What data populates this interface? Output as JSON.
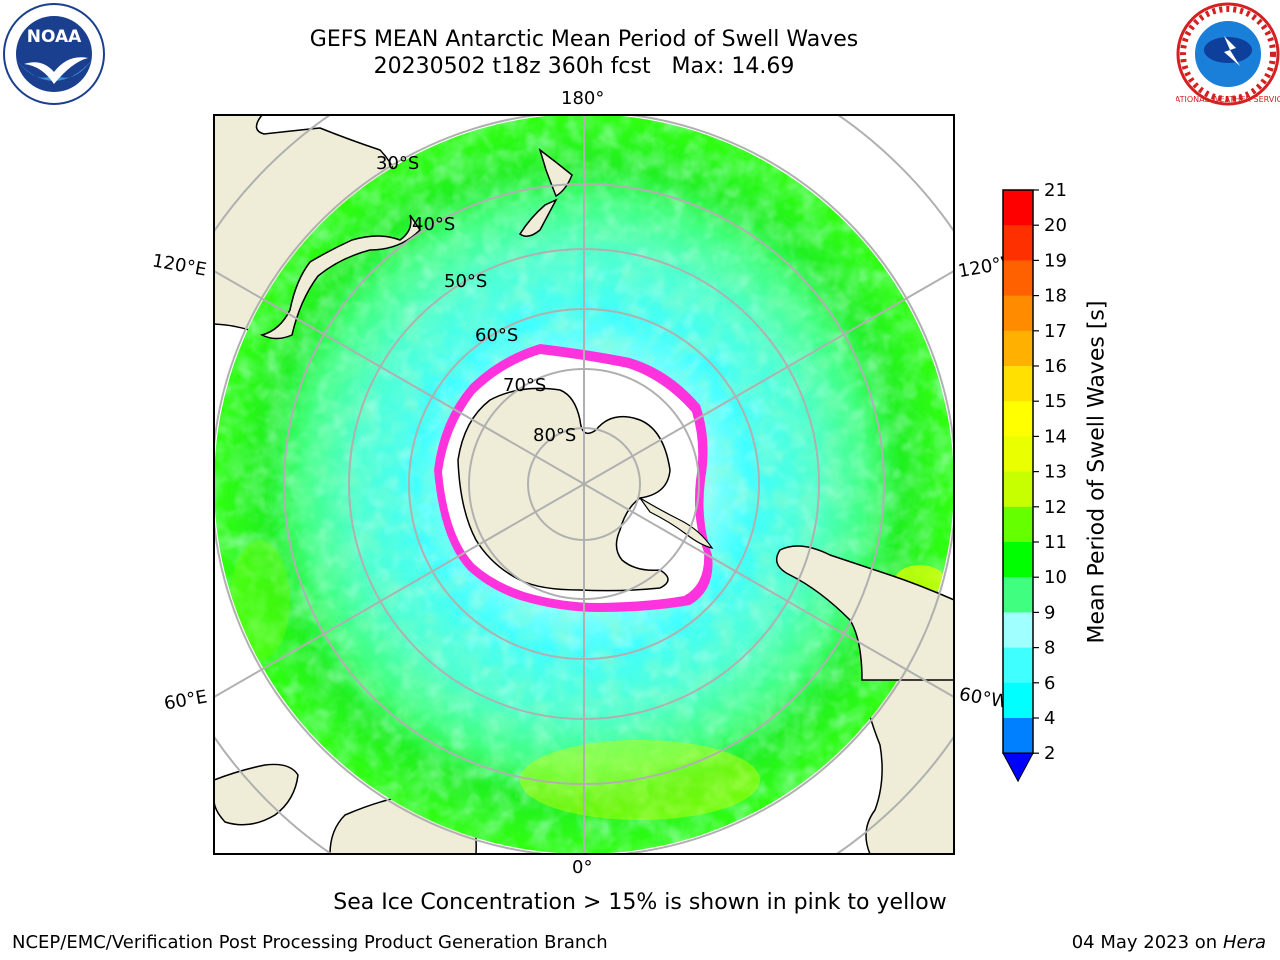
{
  "title": {
    "line1": "GEFS MEAN Antarctic Mean Period of Swell Waves",
    "line2": "20230502 t18z 360h fcst   Max: 14.69"
  },
  "logos": {
    "left": "NOAA",
    "right": "NATIONAL WEATHER SERVICE"
  },
  "map": {
    "projection": "south-polar-stereographic",
    "longitude_labels": {
      "top": "180°",
      "bottom": "0°",
      "left_upper": "120°E",
      "left_lower": "60°E",
      "right_upper": "120°W",
      "right_lower": "60°W"
    },
    "latitude_labels": [
      "30°S",
      "40°S",
      "50°S",
      "60°S",
      "70°S",
      "80°S"
    ],
    "colors": {
      "land": "#efedd8",
      "ice_shelf": "#ffffff",
      "sea_ice_edge": "#ff33dd",
      "grid": "#b0b0b0"
    }
  },
  "colorbar": {
    "label": "Mean Period of Swell Waves [s]",
    "ticks": [
      "2",
      "4",
      "6",
      "8",
      "9",
      "10",
      "11",
      "12",
      "13",
      "14",
      "15",
      "16",
      "17",
      "18",
      "19",
      "20",
      "21"
    ],
    "colors": [
      "#0000ff",
      "#0080ff",
      "#00ffff",
      "#40ffff",
      "#a0ffff",
      "#40ff80",
      "#00ff00",
      "#66ff00",
      "#c8ff00",
      "#eaff00",
      "#ffff00",
      "#ffe000",
      "#ffb000",
      "#ff8c00",
      "#ff6000",
      "#ff3000",
      "#ff0000"
    ],
    "extend": "min"
  },
  "footer": {
    "note": "Sea Ice Concentration > 15% is shown in pink to yellow",
    "credit": "NCEP/EMC/Verification Post Processing Product Generation Branch",
    "date": "04 May 2023 on",
    "host": "Hera"
  }
}
